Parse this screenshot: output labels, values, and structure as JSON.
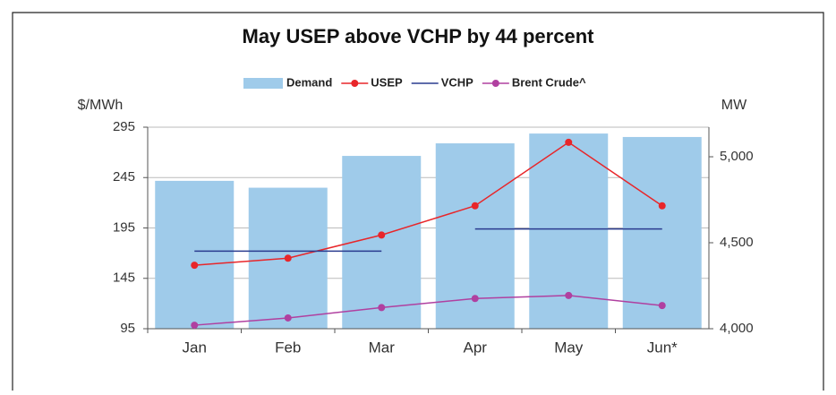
{
  "chart_data": {
    "type": "bar-line",
    "title": "May USEP above VCHP by 44 percent",
    "y_label": "$/MWh",
    "y2_label": "MW",
    "categories": [
      "Jan",
      "Feb",
      "Mar",
      "Apr",
      "May",
      "Jun*"
    ],
    "series": [
      {
        "name": "Demand",
        "type": "bar",
        "axis": "y2",
        "color": "#9fcbea",
        "values": [
          4860,
          4820,
          5005,
          5078,
          5135,
          5115
        ]
      },
      {
        "name": "USEP",
        "type": "line",
        "color": "#e8262a",
        "marker": true,
        "values": [
          158,
          165,
          188,
          217,
          280,
          217
        ]
      },
      {
        "name": "VCHP",
        "type": "step",
        "color": "#2a3b8f",
        "marker": false,
        "values": [
          172,
          172,
          172,
          194,
          194,
          194
        ]
      },
      {
        "name": "Brent Crude^",
        "type": "line",
        "color": "#b040a0",
        "marker": true,
        "values": [
          98.5,
          105.7,
          116,
          125,
          128,
          118
        ]
      }
    ],
    "ylim": [
      95,
      295
    ],
    "yticks": [
      95,
      145,
      195,
      245,
      295
    ],
    "y2lim": [
      4000,
      5172
    ],
    "y2ticks": [
      {
        "value": 4000,
        "label": "4,000"
      },
      {
        "value": 4500,
        "label": "4,500"
      },
      {
        "value": 5000,
        "label": "5,000"
      }
    ],
    "grid": true,
    "legend": "top"
  }
}
